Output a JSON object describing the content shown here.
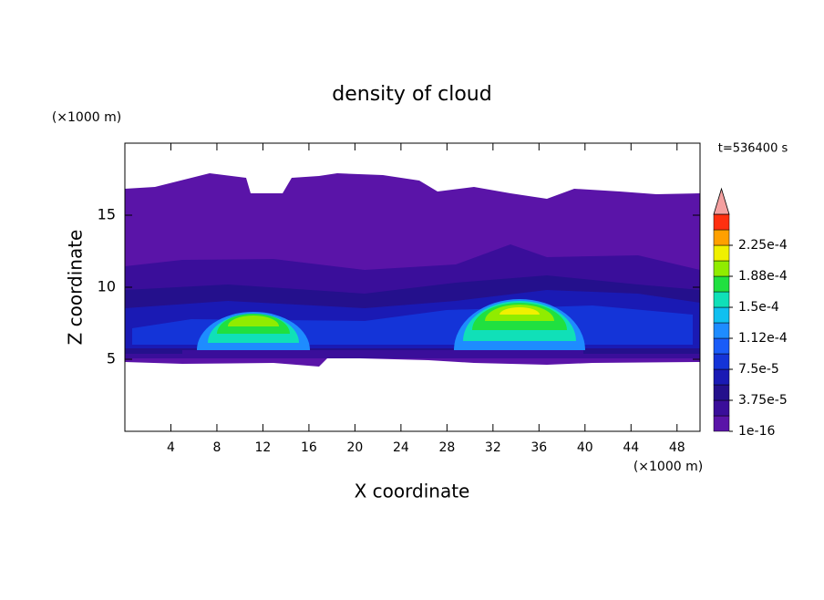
{
  "chart_data": {
    "type": "contour",
    "title": "density of cloud",
    "x_label": "X coordinate",
    "y_label": "Z coordinate",
    "x_unit": "(×1000 m)",
    "y_unit": "(×1000 m)",
    "time_label": "t=536400 s",
    "xlim": [
      0,
      50
    ],
    "xticks": [
      4,
      8,
      12,
      16,
      20,
      24,
      28,
      32,
      36,
      40,
      44,
      48
    ],
    "ylim": [
      0,
      20
    ],
    "yticks": [
      5,
      10,
      15
    ],
    "colorbar": {
      "clim": [
        0,
        0.0002625
      ],
      "colors": [
        "#5a14a8",
        "#3a0e9a",
        "#24108c",
        "#1a1ab4",
        "#1434d8",
        "#1a5cf8",
        "#1e8cff",
        "#10c0f0",
        "#10e0b8",
        "#20e040",
        "#90ec00",
        "#f0f000",
        "#ffa000",
        "#ff3010"
      ],
      "extend_color": "#f4a0a0",
      "ticks": [
        {
          "value": 1e-16,
          "label": "1e-16"
        },
        {
          "value": 3.75e-05,
          "label": "3.75e-5"
        },
        {
          "value": 7.5e-05,
          "label": "7.5e-5"
        },
        {
          "value": 0.0001125,
          "label": "1.12e-4"
        },
        {
          "value": 0.00015,
          "label": "1.5e-4"
        },
        {
          "value": 0.0001875,
          "label": "1.88e-4"
        },
        {
          "value": 0.000225,
          "label": "2.25e-4"
        }
      ]
    }
  }
}
